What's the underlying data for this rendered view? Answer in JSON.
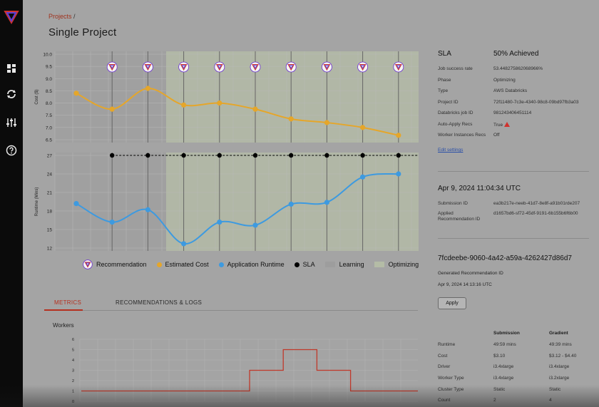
{
  "breadcrumb": {
    "projects": "Projects",
    "separator": "/"
  },
  "page": {
    "title": "Single Project"
  },
  "sidebar": {
    "items": [
      {
        "icon": "dashboard-icon"
      },
      {
        "icon": "recycle-icon"
      },
      {
        "icon": "sliders-icon"
      },
      {
        "icon": "help-icon"
      }
    ]
  },
  "chart_data": [
    {
      "type": "line",
      "ylabel": "Cost ($)",
      "ylim": [
        6.5,
        10.0
      ],
      "yticks": [
        "10.0",
        "9.5",
        "9.0",
        "8.5",
        "8.0",
        "7.5",
        "7.0",
        "6.5"
      ],
      "series": [
        {
          "name": "Estimated Cost",
          "color": "#e5a62a",
          "values": [
            8.4,
            7.75,
            8.6,
            7.92,
            8.0,
            7.75,
            7.35,
            7.2,
            7.0,
            6.68
          ]
        }
      ],
      "recommendations": [
        1,
        2,
        3,
        4,
        5,
        6,
        7,
        8,
        9
      ]
    },
    {
      "type": "line",
      "ylabel": "Runtime (Mins)",
      "ylim": [
        12,
        27
      ],
      "yticks": [
        "27",
        "24",
        "21",
        "18",
        "15",
        "12"
      ],
      "series": [
        {
          "name": "Application Runtime",
          "color": "#3d9ae0",
          "values": [
            19.2,
            16.2,
            18.2,
            12.7,
            16.2,
            15.7,
            19.1,
            19.4,
            23.5,
            24.0
          ]
        },
        {
          "name": "SLA",
          "color": "#000000",
          "values": [
            null,
            27,
            27,
            27,
            27,
            27,
            27,
            27,
            27,
            27
          ]
        }
      ]
    },
    {
      "type": "line",
      "title": "Workers",
      "ylim": [
        0,
        6
      ],
      "yticks": [
        "6",
        "5",
        "4",
        "3",
        "2",
        "1",
        "0"
      ],
      "series": [
        {
          "name": "",
          "color": "#c0392b",
          "steps": [
            [
              0,
              1
            ],
            [
              50,
              1
            ],
            [
              50,
              3
            ],
            [
              60,
              3
            ],
            [
              60,
              5
            ],
            [
              70,
              5
            ],
            [
              70,
              3
            ],
            [
              80,
              3
            ],
            [
              80,
              1
            ],
            [
              100,
              1
            ]
          ]
        }
      ]
    }
  ],
  "legend": {
    "recommendation": "Recommendation",
    "estimated_cost": "Estimated Cost",
    "application_runtime": "Application Runtime",
    "sla": "SLA",
    "learning": "Learning",
    "optimizing": "Optimizing"
  },
  "colors": {
    "cost": "#e5a62a",
    "runtime": "#3d9ae0",
    "sla": "#000000",
    "learning": "#9d9d9d",
    "optimizing": "#b4bca6",
    "accent": "#b5301f",
    "rec_icon": "#6b2fd1"
  },
  "tabs": {
    "metrics": "METRICS",
    "recs_logs": "RECOMMENDATIONS & LOGS"
  },
  "workers_label": "Workers",
  "panel": {
    "sla_label": "SLA",
    "sla_value": "50% Achieved",
    "fields": [
      {
        "k": "Job success rate",
        "v": "53.448275862068966%"
      },
      {
        "k": "Phase",
        "v": "Optimizing"
      },
      {
        "k": "Type",
        "v": "AWS Databricks"
      },
      {
        "k": "Project ID",
        "v": "72f11480-7c3e-4340-98c8-09bd97fb3a03"
      },
      {
        "k": "Databricks job ID",
        "v": "981243406451114"
      },
      {
        "k": "Auto-Apply Recs",
        "v": "True"
      },
      {
        "k": "Worker Instances Recs",
        "v": "Off"
      }
    ],
    "edit_settings": "Edit settings",
    "date": "Apr 9, 2024 11:04:34 UTC",
    "submission": [
      {
        "k": "Submission ID",
        "v": "ea3b217e-neeb-41d7-8e8f-a91b01rde207"
      },
      {
        "k": "Applied Recommendation ID",
        "v": "d1657bd6-sf72-45df-9191-6b155b6f6b00"
      }
    ],
    "rec_id": "7fcdeebe-9060-4a42-a59a-4262427d86d7",
    "gen_label": "Generated Recommendation ID",
    "gen_date": "Apr 9, 2024 14:13:16 UTC",
    "apply": "Apply",
    "table": {
      "headers": [
        "",
        "Submission",
        "Gradient"
      ],
      "rows": [
        [
          "Runtime",
          "49:59 mins",
          "49:39 mins"
        ],
        [
          "Cost",
          "$3.10",
          "$3.12 - $4.40"
        ],
        [
          "Driver",
          "i3.4xlarge",
          "i3.4xlarge"
        ],
        [
          "Worker Type",
          "i3.4xlarge",
          "i3.2xlarge"
        ],
        [
          "Cluster Type",
          "Static",
          "Static"
        ],
        [
          "Count",
          "2",
          "4"
        ]
      ]
    }
  }
}
